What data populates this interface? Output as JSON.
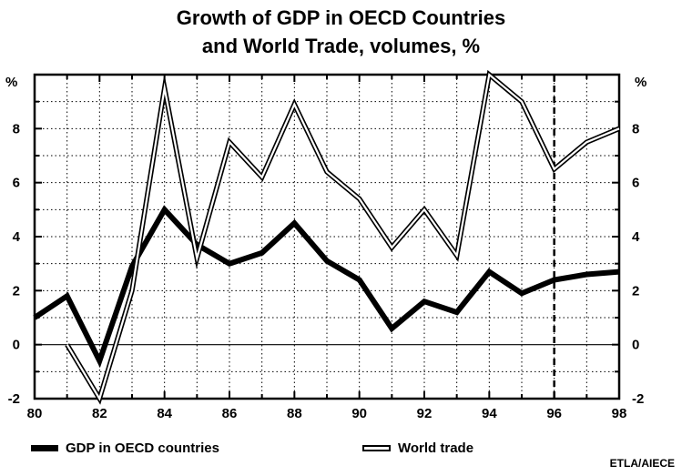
{
  "title_lines": [
    "Growth of GDP in OECD Countries",
    "and World Trade, volumes, %"
  ],
  "source": "ETLA/AIECE",
  "chart_data": {
    "type": "line",
    "title": "Growth of GDP in OECD Countries and World Trade, volumes, %",
    "xlabel": "",
    "ylabel": "%",
    "ylabel_right": "%",
    "xlim": [
      80,
      98
    ],
    "ylim": [
      -2,
      10
    ],
    "x_ticks": [
      "80",
      "82",
      "84",
      "86",
      "88",
      "90",
      "92",
      "94",
      "96",
      "98"
    ],
    "y_ticks": [
      "-2",
      "0",
      "2",
      "4",
      "6",
      "8"
    ],
    "grid": true,
    "forecast_divider_x": 96,
    "legend_position": "bottom",
    "series": [
      {
        "name": "GDP in OECD countries",
        "style": "thick-solid",
        "x": [
          80,
          81,
          82,
          83,
          84,
          85,
          86,
          87,
          88,
          89,
          90,
          91,
          92,
          93,
          94,
          95,
          96,
          97,
          98
        ],
        "values": [
          1.0,
          1.8,
          -0.6,
          2.9,
          5.0,
          3.7,
          3.0,
          3.4,
          4.5,
          3.1,
          2.4,
          0.6,
          1.6,
          1.2,
          2.7,
          1.9,
          2.4,
          2.6,
          2.7
        ]
      },
      {
        "name": "World trade",
        "style": "double-outline",
        "x": [
          81,
          82,
          83,
          84,
          85,
          86,
          87,
          88,
          89,
          90,
          91,
          92,
          93,
          94,
          95,
          96,
          97,
          98
        ],
        "values": [
          0.0,
          -2.0,
          2.0,
          9.5,
          3.2,
          7.5,
          6.2,
          8.9,
          6.4,
          5.4,
          3.6,
          5.0,
          3.3,
          10.0,
          9.0,
          6.5,
          7.5,
          8.0
        ]
      }
    ]
  }
}
